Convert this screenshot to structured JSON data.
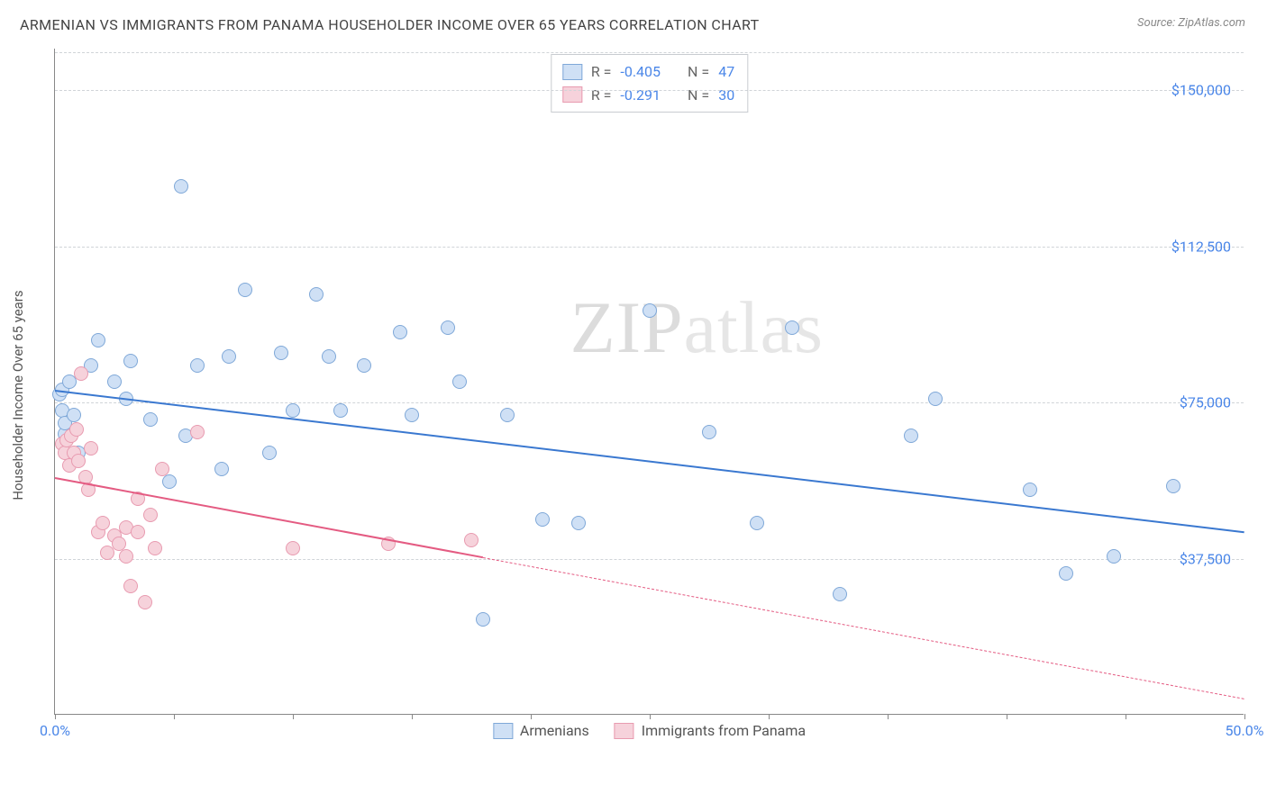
{
  "title": "ARMENIAN VS IMMIGRANTS FROM PANAMA HOUSEHOLDER INCOME OVER 65 YEARS CORRELATION CHART",
  "source": "Source: ZipAtlas.com",
  "ylabel": "Householder Income Over 65 years",
  "watermark_a": "ZIP",
  "watermark_b": "atlas",
  "chart": {
    "type": "scatter",
    "background_color": "#ffffff",
    "grid_color": "#d0d4d8",
    "axis_color": "#888888",
    "xlim": [
      0,
      50
    ],
    "ylim": [
      0,
      160000
    ],
    "x_ticks": [
      0,
      5,
      10,
      15,
      20,
      25,
      30,
      35,
      40,
      45,
      50
    ],
    "x_tick_labels": {
      "0": "0.0%",
      "50": "50.0%"
    },
    "y_gridlines": [
      37500,
      75000,
      112500,
      150000
    ],
    "y_tick_labels": {
      "37500": "$37,500",
      "75000": "$75,000",
      "112500": "$112,500",
      "150000": "$150,000"
    },
    "ylabel_color": "#4a86e8",
    "label_fontsize": 16,
    "title_fontsize": 16,
    "point_radius": 8,
    "series": [
      {
        "name": "Armenians",
        "fill": "#cfe0f5",
        "stroke": "#7fa8d8",
        "line_color": "#3a78d0",
        "R": "-0.405",
        "N": "47",
        "trend": {
          "x1": 0,
          "y1": 78000,
          "x2": 50,
          "y2": 44000,
          "solid_to_x": 50
        },
        "points": [
          [
            0.2,
            77000
          ],
          [
            0.3,
            78000
          ],
          [
            0.3,
            73000
          ],
          [
            0.4,
            67500
          ],
          [
            0.4,
            70000
          ],
          [
            0.6,
            80000
          ],
          [
            0.8,
            72000
          ],
          [
            1.0,
            63000
          ],
          [
            1.5,
            84000
          ],
          [
            1.8,
            90000
          ],
          [
            2.5,
            80000
          ],
          [
            3.0,
            76000
          ],
          [
            3.2,
            85000
          ],
          [
            4.0,
            71000
          ],
          [
            4.8,
            56000
          ],
          [
            5.3,
            127000
          ],
          [
            5.5,
            67000
          ],
          [
            6.0,
            84000
          ],
          [
            7.0,
            59000
          ],
          [
            7.3,
            86000
          ],
          [
            8.0,
            102000
          ],
          [
            9.0,
            63000
          ],
          [
            9.5,
            87000
          ],
          [
            10.0,
            73000
          ],
          [
            11.0,
            101000
          ],
          [
            11.5,
            86000
          ],
          [
            12.0,
            73000
          ],
          [
            13.0,
            84000
          ],
          [
            14.5,
            92000
          ],
          [
            15.0,
            72000
          ],
          [
            16.5,
            93000
          ],
          [
            17.0,
            80000
          ],
          [
            18.0,
            23000
          ],
          [
            19.0,
            72000
          ],
          [
            20.5,
            47000
          ],
          [
            22.0,
            46000
          ],
          [
            25.0,
            97000
          ],
          [
            27.5,
            68000
          ],
          [
            29.5,
            46000
          ],
          [
            31.0,
            93000
          ],
          [
            33.0,
            29000
          ],
          [
            36.0,
            67000
          ],
          [
            37.0,
            76000
          ],
          [
            41.0,
            54000
          ],
          [
            42.5,
            34000
          ],
          [
            44.5,
            38000
          ],
          [
            47.0,
            55000
          ]
        ]
      },
      {
        "name": "Immigrants from Panama",
        "fill": "#f6d2db",
        "stroke": "#e89bb0",
        "line_color": "#e45b82",
        "R": "-0.291",
        "N": "30",
        "trend": {
          "x1": 0,
          "y1": 57000,
          "x2": 50,
          "y2": 4000,
          "solid_to_x": 18
        },
        "points": [
          [
            0.3,
            65000
          ],
          [
            0.4,
            63000
          ],
          [
            0.5,
            66000
          ],
          [
            0.6,
            60000
          ],
          [
            0.7,
            67000
          ],
          [
            0.8,
            63000
          ],
          [
            0.9,
            68500
          ],
          [
            1.0,
            61000
          ],
          [
            1.1,
            82000
          ],
          [
            1.3,
            57000
          ],
          [
            1.4,
            54000
          ],
          [
            1.5,
            64000
          ],
          [
            1.8,
            44000
          ],
          [
            2.0,
            46000
          ],
          [
            2.2,
            39000
          ],
          [
            2.5,
            43000
          ],
          [
            2.7,
            41000
          ],
          [
            3.0,
            38000
          ],
          [
            3.0,
            45000
          ],
          [
            3.2,
            31000
          ],
          [
            3.5,
            44000
          ],
          [
            3.5,
            52000
          ],
          [
            3.8,
            27000
          ],
          [
            4.0,
            48000
          ],
          [
            4.2,
            40000
          ],
          [
            4.5,
            59000
          ],
          [
            6.0,
            68000
          ],
          [
            10.0,
            40000
          ],
          [
            14.0,
            41000
          ],
          [
            17.5,
            42000
          ]
        ]
      }
    ]
  },
  "stat_legend_labels": {
    "R": "R =",
    "N": "N ="
  }
}
